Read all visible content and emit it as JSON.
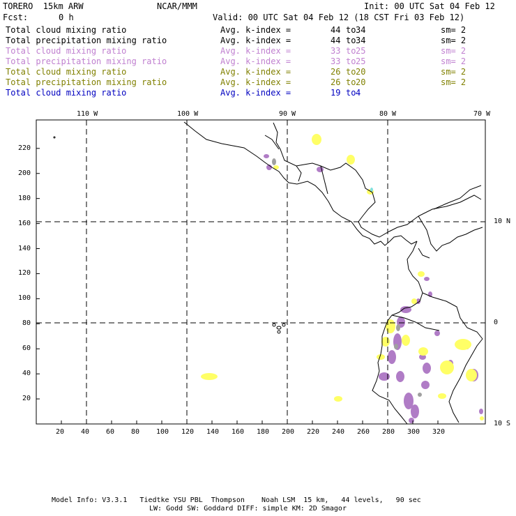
{
  "header": {
    "model": "TORERO  15km ARW",
    "org": "NCAR/MMM",
    "init": "Init: 00 UTC Sat 04 Feb 12",
    "fcst_label": "Fcst:",
    "fcst_value": "0 h",
    "valid": "Valid: 00 UTC Sat 04 Feb 12 (18 CST Fri 03 Feb 12)"
  },
  "legend": [
    {
      "name": "Total cloud mixing ratio",
      "index_label": "Avg. k-index =",
      "k1": "44",
      "to": "to",
      "k2": "34",
      "sm": "sm= 2",
      "color": "#000000"
    },
    {
      "name": "Total precipitation mixing ratio",
      "index_label": "Avg. k-index =",
      "k1": "44",
      "to": "to",
      "k2": "34",
      "sm": "sm= 2",
      "color": "#000000"
    },
    {
      "name": "Total cloud mixing ratio",
      "index_label": "Avg. k-index =",
      "k1": "33",
      "to": "to",
      "k2": "25",
      "sm": "sm= 2",
      "color": "#c080d0"
    },
    {
      "name": "Total precipitation mixing ratio",
      "index_label": "Avg. k-index =",
      "k1": "33",
      "to": "to",
      "k2": "25",
      "sm": "sm= 2",
      "color": "#c080d0"
    },
    {
      "name": "Total cloud mixing ratio",
      "index_label": "Avg. k-index =",
      "k1": "26",
      "to": "to",
      "k2": "20",
      "sm": "sm= 2",
      "color": "#808000"
    },
    {
      "name": "Total precipitation mixing ratio",
      "index_label": "Avg. k-index =",
      "k1": "26",
      "to": "to",
      "k2": "20",
      "sm": "sm= 2",
      "color": "#808000"
    },
    {
      "name": "Total cloud mixing ratio",
      "index_label": "Avg. k-index =",
      "k1": "19",
      "to": "to",
      "k2": "4",
      "sm": "",
      "color": "#0000c0"
    }
  ],
  "map": {
    "lon_labels": [
      "110 W",
      "100 W",
      "90 W",
      "80 W",
      "70 W"
    ],
    "lat_labels": [
      "10 N",
      "0",
      "10 S"
    ],
    "x_ticks": [
      "20",
      "40",
      "60",
      "80",
      "100",
      "120",
      "140",
      "160",
      "180",
      "200",
      "220",
      "240",
      "260",
      "280",
      "300",
      "320"
    ],
    "y_ticks": [
      "20",
      "40",
      "60",
      "80",
      "100",
      "120",
      "140",
      "160",
      "180",
      "200",
      "220"
    ]
  },
  "footer": {
    "line1": "Model Info: V3.3.1   Tiedtke YSU PBL  Thompson    Noah LSM  15 km,   44 levels,   90 sec",
    "line2": "LW: Godd SW: Goddard DIFF: simple KM: 2D Smagor"
  },
  "colors": {
    "precip_purple": "#b07cc6",
    "cloud_yellow": "#ffff66",
    "gray": "#a0a0a0",
    "cyan": "#80e0e0"
  }
}
